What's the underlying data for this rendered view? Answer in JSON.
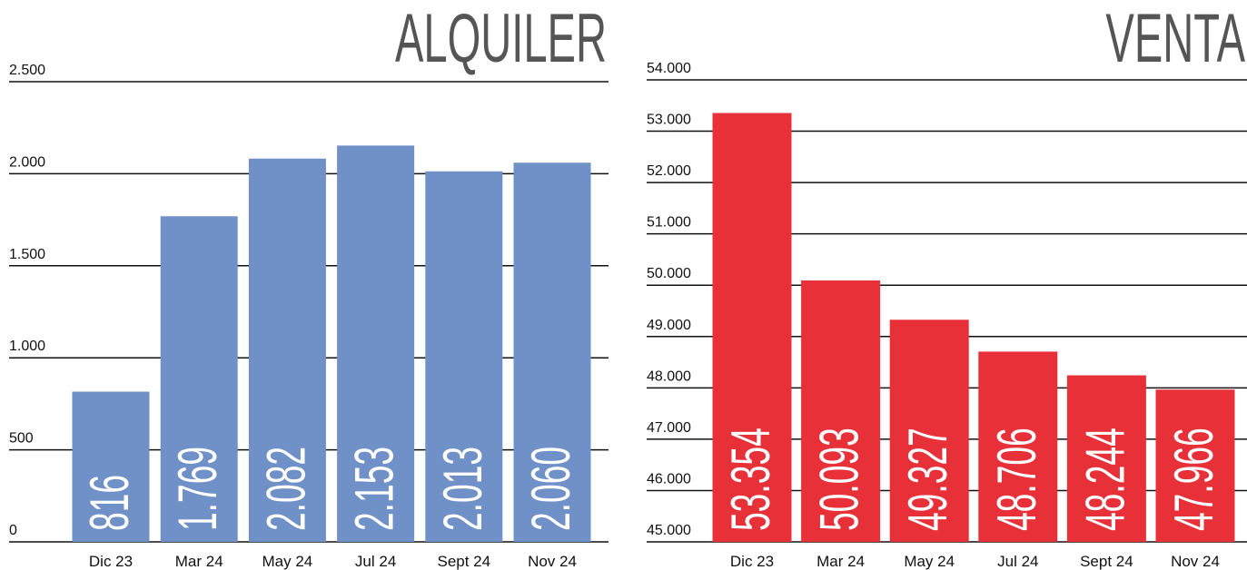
{
  "chart_data": [
    {
      "type": "bar",
      "title": "ALQUILER",
      "categories": [
        "Dic 23",
        "Mar 24",
        "May 24",
        "Jul 24",
        "Sept 24",
        "Nov 24"
      ],
      "values": [
        816,
        1769,
        2082,
        2153,
        2013,
        2060
      ],
      "value_labels": [
        "816",
        "1.769",
        "2.082",
        "2.153",
        "2.013",
        "2.060"
      ],
      "color": "#7090c8",
      "ylim": [
        0,
        2500
      ],
      "yticks": [
        0,
        500,
        {
          "value": 1000,
          "label": "1.000"
        },
        {
          "value": 1500,
          "label": "1.500"
        },
        {
          "value": 2000,
          "label": "2.000"
        },
        {
          "value": 2500,
          "label": "2.500"
        }
      ],
      "grid": true
    },
    {
      "type": "bar",
      "title": "VENTA",
      "categories": [
        "Dic 23",
        "Mar 24",
        "May 24",
        "Jul 24",
        "Sept 24",
        "Nov 24"
      ],
      "values": [
        53354,
        50093,
        49327,
        48706,
        48244,
        47966
      ],
      "value_labels": [
        "53.354",
        "50.093",
        "49.327",
        "48.706",
        "48.244",
        "47.966"
      ],
      "color": "#e83038",
      "ylim": [
        45000,
        54000
      ],
      "yticks": [
        {
          "value": 45000,
          "label": "45.000"
        },
        {
          "value": 46000,
          "label": "46.000"
        },
        {
          "value": 47000,
          "label": "47.000"
        },
        {
          "value": 48000,
          "label": "48.000"
        },
        {
          "value": 49000,
          "label": "49.000"
        },
        {
          "value": 50000,
          "label": "50.000"
        },
        {
          "value": 51000,
          "label": "51.000"
        },
        {
          "value": 52000,
          "label": "52.000"
        },
        {
          "value": 53000,
          "label": "53.000"
        },
        {
          "value": 54000,
          "label": "54.000"
        }
      ],
      "grid": true
    }
  ]
}
